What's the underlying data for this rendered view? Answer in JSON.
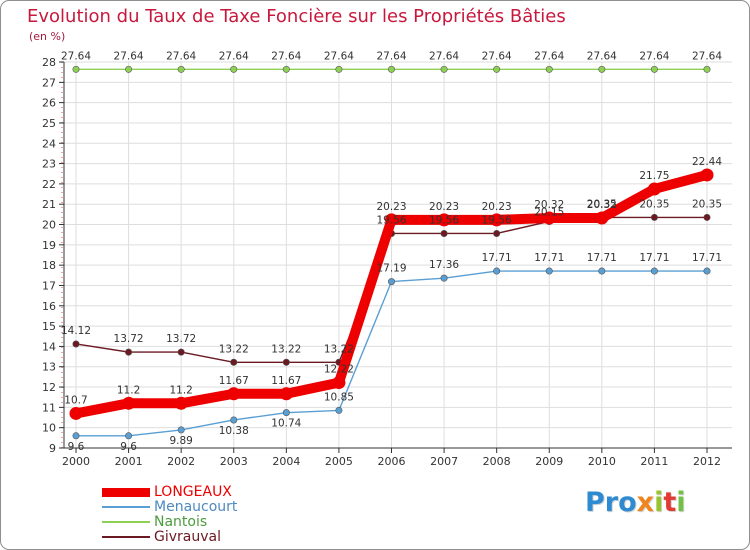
{
  "title": "Evolution du Taux de Taxe Foncière sur les Propriétés Bâties",
  "unit_label": "(en %)",
  "brand": {
    "segments": [
      {
        "text": "Pro",
        "color": "#2e8bd2"
      },
      {
        "text": "x",
        "color": "#f0851f"
      },
      {
        "text": "i",
        "color": "#95c42e"
      },
      {
        "text": "t",
        "color": "#e23b34"
      },
      {
        "text": "i",
        "color": "#72c046"
      }
    ]
  },
  "chart_data": {
    "type": "line",
    "title": "Evolution du Taux de Taxe Foncière sur les Propriétés Bâties",
    "xlabel": "",
    "ylabel": "(en %)",
    "ylim": [
      9,
      28
    ],
    "grid": true,
    "legend_position": "bottom-left",
    "categories": [
      "2000",
      "2001",
      "2002",
      "2003",
      "2004",
      "2005",
      "2006",
      "2007",
      "2008",
      "2009",
      "2010",
      "2011",
      "2012"
    ],
    "yticks": [
      9,
      10,
      11,
      12,
      13,
      14,
      15,
      16,
      17,
      18,
      19,
      20,
      21,
      22,
      23,
      24,
      25,
      26,
      27,
      28
    ],
    "series": [
      {
        "name": "LONGEAUX",
        "color": "#ee0000",
        "values": [
          10.7,
          11.2,
          11.2,
          11.67,
          11.67,
          12.22,
          20.23,
          20.23,
          20.23,
          20.32,
          20.32,
          21.75,
          22.44
        ],
        "labels": [
          "10.7",
          "11.2",
          "11.2",
          "11.67",
          "11.67",
          "12.22",
          "20.23",
          "20.23",
          "20.23",
          "20.32",
          "20.32",
          "21.75",
          "22.44"
        ]
      },
      {
        "name": "Menaucourt",
        "color": "#5a9fd4",
        "values": [
          9.6,
          9.6,
          9.89,
          10.38,
          10.74,
          10.85,
          17.19,
          17.36,
          17.71,
          17.71,
          17.71,
          17.71,
          17.71
        ],
        "labels": [
          "9.6",
          "9.6",
          "9.89",
          "10.38",
          "10.74",
          "10.85",
          "17.19",
          "17.36",
          "17.71",
          "17.71",
          "17.71",
          "17.71",
          "17.71"
        ]
      },
      {
        "name": "Nantois",
        "color": "#8ecf56",
        "values": [
          27.64,
          27.64,
          27.64,
          27.64,
          27.64,
          27.64,
          27.64,
          27.64,
          27.64,
          27.64,
          27.64,
          27.64,
          27.64
        ],
        "labels": [
          "27.64",
          "27.64",
          "27.64",
          "27.64",
          "27.64",
          "27.64",
          "27.64",
          "27.64",
          "27.64",
          "27.64",
          "27.64",
          "27.64",
          "27.64"
        ]
      },
      {
        "name": "Givrauval",
        "color": "#6b1a22",
        "values": [
          14.12,
          13.72,
          13.72,
          13.22,
          13.22,
          13.22,
          19.56,
          19.56,
          19.56,
          20.15,
          20.35,
          20.35,
          20.35
        ],
        "labels": [
          "14.12",
          "13.72",
          "13.72",
          "13.22",
          "13.22",
          "13.22",
          "19.56",
          "19.56",
          "19.56",
          "20.15",
          "20.35",
          "20.35",
          "20.35"
        ]
      }
    ]
  }
}
